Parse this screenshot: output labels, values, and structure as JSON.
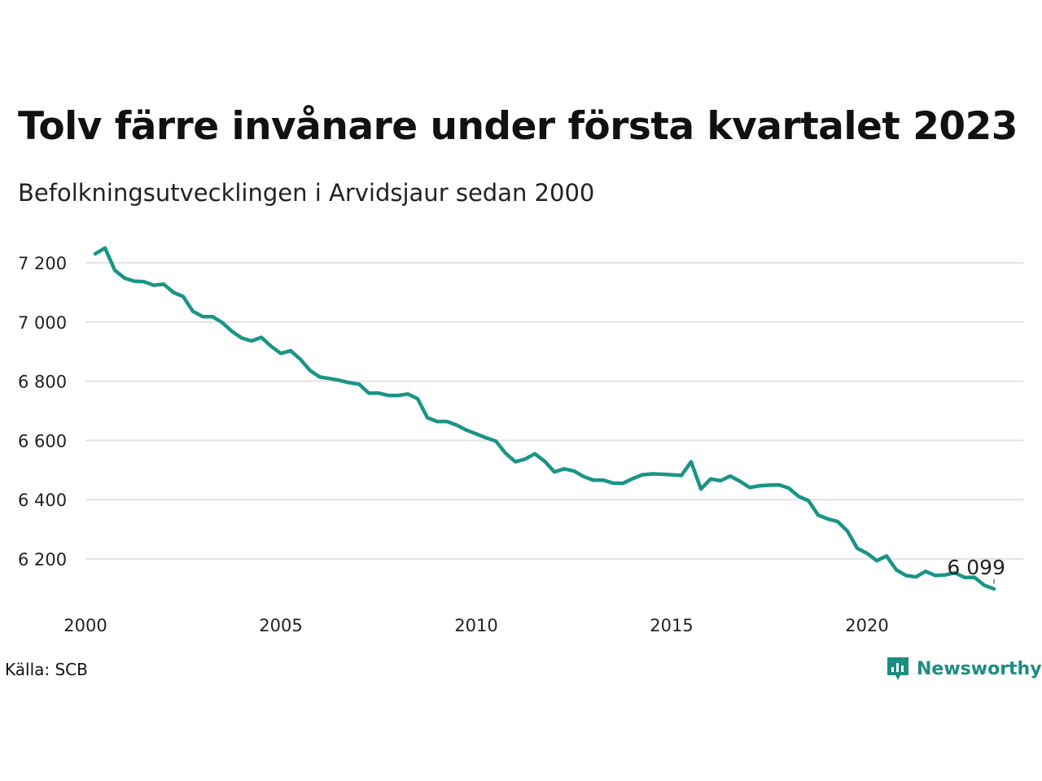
{
  "title": "Tolv färre invånare under första kvartalet 2023",
  "subtitle": "Befolkningsutvecklingen i Arvidsjaur sedan 2000",
  "source": "Källa: SCB",
  "brand": "Newsworthy",
  "colors": {
    "line": "#1b9486",
    "grid": "#e3e3e3",
    "brand": "#1b8d83"
  },
  "chart_data": {
    "type": "line",
    "title": "Tolv färre invånare under första kvartalet 2023",
    "subtitle": "Befolkningsutvecklingen i Arvidsjaur sedan 2000",
    "xlabel": "",
    "ylabel": "",
    "x_range": [
      2000.0,
      2023.25
    ],
    "ylim": [
      6080,
      7270
    ],
    "y_ticks": [
      6200,
      6400,
      6600,
      6800,
      7000,
      7200
    ],
    "y_tick_labels": [
      "6 200",
      "6 400",
      "6 600",
      "6 800",
      "7 000",
      "7 200"
    ],
    "x_ticks": [
      2000,
      2005,
      2010,
      2015,
      2020
    ],
    "x_tick_labels": [
      "2000",
      "2005",
      "2010",
      "2015",
      "2020"
    ],
    "grid": true,
    "annotation": {
      "label": "6 099",
      "x": 2023.25,
      "y": 6099
    },
    "series": [
      {
        "x": [
          2000.25,
          2000.5,
          2000.75,
          2001.0,
          2001.25,
          2001.5,
          2001.75,
          2002.0,
          2002.25,
          2002.5,
          2002.75,
          2003.0,
          2003.25,
          2003.5,
          2003.75,
          2004.0,
          2004.25,
          2004.5,
          2004.75,
          2005.0,
          2005.25,
          2005.5,
          2005.75,
          2006.0,
          2006.25,
          2006.5,
          2006.75,
          2007.0,
          2007.25,
          2007.5,
          2007.75,
          2008.0,
          2008.25,
          2008.5,
          2008.75,
          2009.0,
          2009.25,
          2009.5,
          2009.75,
          2010.0,
          2010.25,
          2010.5,
          2010.75,
          2011.0,
          2011.25,
          2011.5,
          2011.75,
          2012.0,
          2012.25,
          2012.5,
          2012.75,
          2013.0,
          2013.25,
          2013.5,
          2013.75,
          2014.0,
          2014.25,
          2014.5,
          2014.75,
          2015.0,
          2015.25,
          2015.5,
          2015.75,
          2016.0,
          2016.25,
          2016.5,
          2016.75,
          2017.0,
          2017.25,
          2017.5,
          2017.75,
          2018.0,
          2018.25,
          2018.5,
          2018.75,
          2019.0,
          2019.25,
          2019.5,
          2019.75,
          2020.0,
          2020.25,
          2020.5,
          2020.75,
          2021.0,
          2021.25,
          2021.5,
          2021.75,
          2022.0,
          2022.25,
          2022.5,
          2022.75,
          2023.0,
          2023.25
        ],
        "values": [
          7230,
          7250,
          7175,
          7148,
          7138,
          7136,
          7124,
          7128,
          7100,
          7086,
          7036,
          7018,
          7018,
          6998,
          6968,
          6946,
          6936,
          6948,
          6918,
          6894,
          6903,
          6874,
          6836,
          6814,
          6809,
          6803,
          6795,
          6790,
          6760,
          6760,
          6752,
          6752,
          6757,
          6741,
          6677,
          6664,
          6664,
          6652,
          6635,
          6622,
          6609,
          6598,
          6557,
          6528,
          6537,
          6555,
          6530,
          6494,
          6504,
          6497,
          6478,
          6466,
          6466,
          6456,
          6455,
          6471,
          6484,
          6487,
          6486,
          6484,
          6482,
          6528,
          6436,
          6470,
          6464,
          6480,
          6462,
          6441,
          6447,
          6449,
          6450,
          6439,
          6411,
          6397,
          6348,
          6335,
          6326,
          6294,
          6236,
          6219,
          6194,
          6210,
          6163,
          6144,
          6139,
          6158,
          6144,
          6146,
          6153,
          6137,
          6138,
          6111,
          6099
        ]
      }
    ]
  }
}
